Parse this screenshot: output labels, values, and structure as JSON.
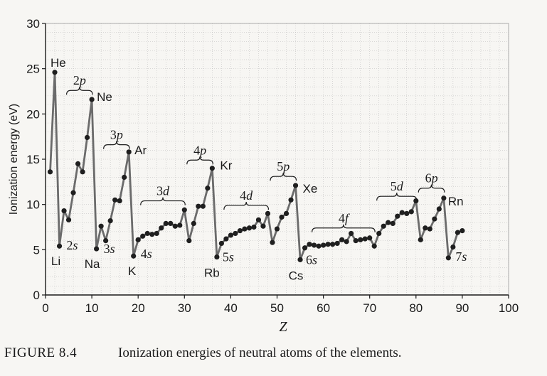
{
  "chart_data": {
    "type": "line",
    "xlabel": "Z",
    "ylabel": "Ionization energy (eV)",
    "xlim": [
      0,
      100
    ],
    "ylim": [
      0,
      30
    ],
    "xticks": [
      0,
      10,
      20,
      30,
      40,
      50,
      60,
      70,
      80,
      90,
      100
    ],
    "yticks": [
      0,
      5,
      10,
      15,
      20,
      25,
      30
    ],
    "grid": true,
    "colors": {
      "line": "#6b6b6b",
      "marker": "#1f1f1f",
      "grid": "#b8b8b8"
    },
    "x": [
      1,
      2,
      3,
      4,
      5,
      6,
      7,
      8,
      9,
      10,
      11,
      12,
      13,
      14,
      15,
      16,
      17,
      18,
      19,
      20,
      21,
      22,
      23,
      24,
      25,
      26,
      27,
      28,
      29,
      30,
      31,
      32,
      33,
      34,
      35,
      36,
      37,
      38,
      39,
      40,
      41,
      42,
      43,
      44,
      45,
      46,
      47,
      48,
      49,
      50,
      51,
      52,
      53,
      54,
      55,
      56,
      57,
      58,
      59,
      60,
      61,
      62,
      63,
      64,
      65,
      66,
      67,
      68,
      69,
      70,
      71,
      72,
      73,
      74,
      75,
      76,
      77,
      78,
      79,
      80,
      81,
      82,
      83,
      84,
      85,
      86,
      87,
      88,
      89,
      90
    ],
    "y": [
      13.6,
      24.6,
      5.4,
      9.3,
      8.3,
      11.3,
      14.5,
      13.6,
      17.4,
      21.6,
      5.1,
      7.6,
      6.0,
      8.2,
      10.5,
      10.4,
      13.0,
      15.8,
      4.3,
      6.1,
      6.5,
      6.8,
      6.7,
      6.8,
      7.4,
      7.9,
      7.9,
      7.6,
      7.7,
      9.4,
      6.0,
      7.9,
      9.8,
      9.8,
      11.8,
      14.0,
      4.2,
      5.7,
      6.2,
      6.6,
      6.8,
      7.1,
      7.3,
      7.4,
      7.5,
      8.3,
      7.6,
      9.0,
      5.8,
      7.3,
      8.6,
      9.0,
      10.5,
      12.1,
      3.9,
      5.2,
      5.6,
      5.5,
      5.4,
      5.5,
      5.6,
      5.6,
      5.7,
      6.1,
      5.9,
      6.8,
      6.0,
      6.1,
      6.2,
      6.3,
      5.4,
      6.8,
      7.6,
      8.0,
      7.9,
      8.7,
      9.1,
      9.0,
      9.2,
      10.4,
      6.1,
      7.4,
      7.3,
      8.4,
      9.5,
      10.7,
      4.1,
      5.3,
      6.9,
      7.1
    ],
    "element_labels": [
      {
        "text": "He",
        "z": 2,
        "value": 24.6
      },
      {
        "text": "Li",
        "z": 3,
        "value": 5.4
      },
      {
        "text": "Ne",
        "z": 10,
        "value": 21.6
      },
      {
        "text": "Na",
        "z": 11,
        "value": 5.1
      },
      {
        "text": "Ar",
        "z": 18,
        "value": 15.8
      },
      {
        "text": "K",
        "z": 19,
        "value": 4.3
      },
      {
        "text": "Kr",
        "z": 36,
        "value": 14.0
      },
      {
        "text": "Rb",
        "z": 37,
        "value": 4.2
      },
      {
        "text": "Xe",
        "z": 54,
        "value": 12.1
      },
      {
        "text": "Cs",
        "z": 55,
        "value": 3.9
      },
      {
        "text": "Rn",
        "z": 86,
        "value": 10.7
      }
    ],
    "s_labels": [
      {
        "n": "2",
        "l": "s",
        "z": 3
      },
      {
        "n": "3",
        "l": "s",
        "z": 11
      },
      {
        "n": "4",
        "l": "s",
        "z": 19
      },
      {
        "n": "5",
        "l": "s",
        "z": 37
      },
      {
        "n": "6",
        "l": "s",
        "z": 55
      },
      {
        "n": "7",
        "l": "s",
        "z": 87
      }
    ],
    "subshell_braces": [
      {
        "n": "2",
        "l": "p",
        "z_from": 5,
        "z_to": 10,
        "level": 22.6
      },
      {
        "n": "3",
        "l": "p",
        "z_from": 13,
        "z_to": 18,
        "level": 16.6
      },
      {
        "n": "3",
        "l": "d",
        "z_from": 21,
        "z_to": 30,
        "level": 10.4
      },
      {
        "n": "4",
        "l": "p",
        "z_from": 31,
        "z_to": 36,
        "level": 14.9
      },
      {
        "n": "4",
        "l": "d",
        "z_from": 39,
        "z_to": 48,
        "level": 9.9
      },
      {
        "n": "5",
        "l": "p",
        "z_from": 49,
        "z_to": 54,
        "level": 13.1
      },
      {
        "n": "4",
        "l": "f",
        "z_from": 58,
        "z_to": 71,
        "level": 7.4
      },
      {
        "n": "5",
        "l": "d",
        "z_from": 72,
        "z_to": 80,
        "level": 10.9
      },
      {
        "n": "6",
        "l": "p",
        "z_from": 81,
        "z_to": 86,
        "level": 11.8
      }
    ]
  },
  "caption": {
    "tag": "FIGURE 8.4",
    "text": "Ionization energies of neutral atoms of the elements."
  }
}
